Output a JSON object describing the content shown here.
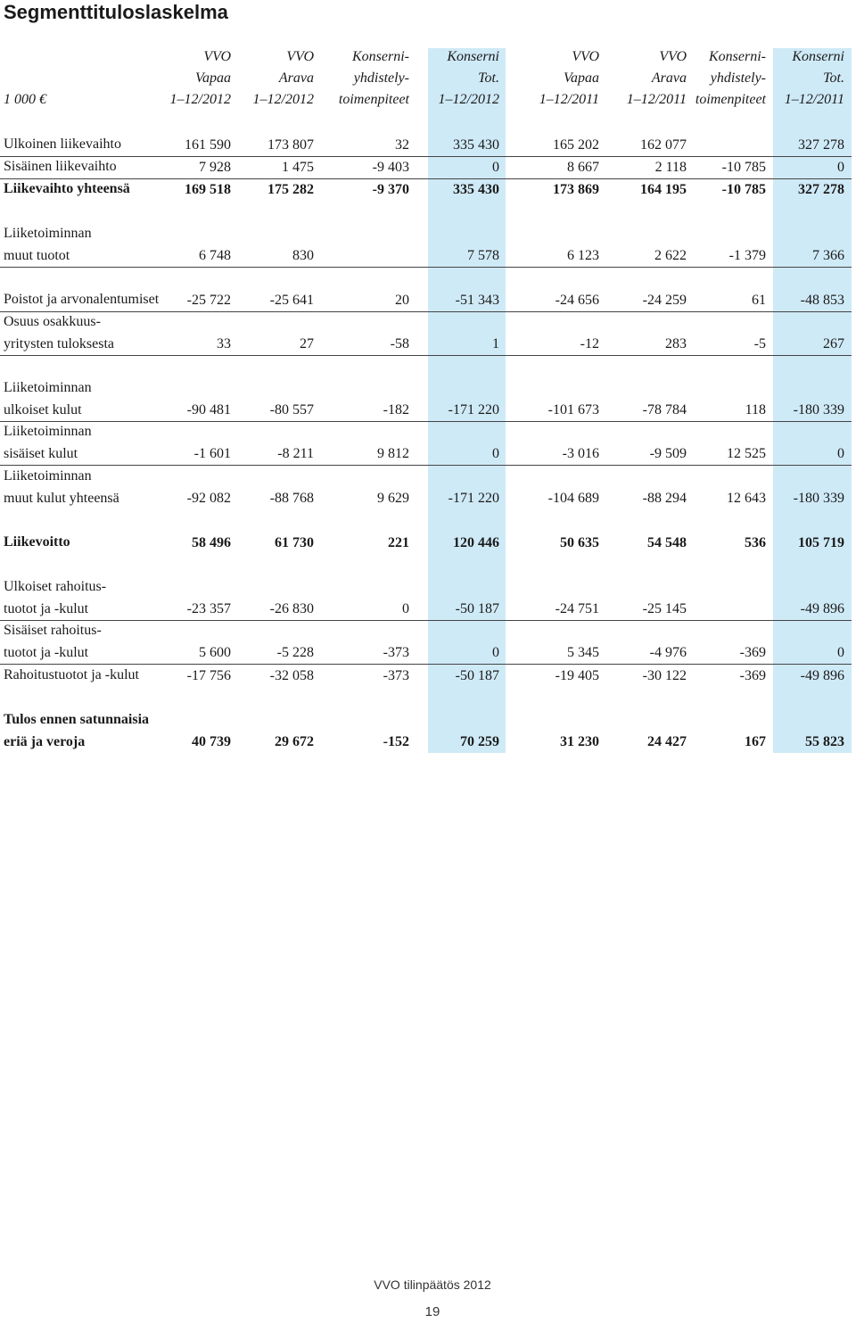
{
  "title": "Segmenttituloslaskelma",
  "unit_label": "1 000 €",
  "columns": [
    {
      "lines": [
        "VVO",
        "Vapaa",
        "1–12/2012"
      ]
    },
    {
      "lines": [
        "VVO",
        "Arava",
        "1–12/2012"
      ]
    },
    {
      "lines": [
        "Konserni-",
        "yhdistely-",
        "toimenpiteet"
      ]
    },
    {
      "lines": [
        "Konserni",
        "Tot.",
        "1–12/2012"
      ]
    },
    {
      "lines": [
        "VVO",
        "Vapaa",
        "1–12/2011"
      ]
    },
    {
      "lines": [
        "VVO",
        "Arava",
        "1–12/2011"
      ]
    },
    {
      "lines": [
        "Konserni-",
        "yhdistely-",
        "toimenpiteet"
      ]
    },
    {
      "lines": [
        "Konserni",
        "Tot.",
        "1–12/2011"
      ]
    }
  ],
  "rows": [
    {
      "label": [
        "Ulkoinen liikevaihto"
      ],
      "values": [
        "161 590",
        "173 807",
        "32",
        "335 430",
        "165 202",
        "162 077",
        "",
        "327 278"
      ]
    },
    {
      "label": [
        "Sisäinen liikevaihto"
      ],
      "values": [
        "7 928",
        "1 475",
        "-9 403",
        "0",
        "8 667",
        "2 118",
        "-10 785",
        "0"
      ]
    },
    {
      "label": [
        "Liikevaihto yhteensä"
      ],
      "values": [
        "169 518",
        "175 282",
        "-9 370",
        "335 430",
        "173 869",
        "164 195",
        "-10 785",
        "327 278"
      ]
    },
    {
      "label": [
        "Liiketoiminnan",
        "muut tuotot"
      ],
      "values": [
        "6 748",
        "830",
        "",
        "7 578",
        "6 123",
        "2 622",
        "-1 379",
        "7 366"
      ]
    },
    {
      "label": [
        "Poistot ja arvonalentumiset"
      ],
      "values": [
        "-25 722",
        "-25 641",
        "20",
        "-51 343",
        "-24 656",
        "-24 259",
        "61",
        "-48 853"
      ]
    },
    {
      "label": [
        "Osuus osakkuus-",
        "yritysten tuloksesta"
      ],
      "values": [
        "33",
        "27",
        "-58",
        "1",
        "-12",
        "283",
        "-5",
        "267"
      ]
    },
    {
      "label": [
        "Liiketoiminnan",
        "ulkoiset kulut"
      ],
      "values": [
        "-90 481",
        "-80 557",
        "-182",
        "-171 220",
        "-101 673",
        "-78 784",
        "118",
        "-180 339"
      ]
    },
    {
      "label": [
        "Liiketoiminnan",
        "sisäiset kulut"
      ],
      "values": [
        "-1 601",
        "-8 211",
        "9 812",
        "0",
        "-3 016",
        "-9 509",
        "12 525",
        "0"
      ]
    },
    {
      "label": [
        "Liiketoiminnan",
        "muut kulut yhteensä"
      ],
      "values": [
        "-92 082",
        "-88 768",
        "9 629",
        "-171 220",
        "-104 689",
        "-88 294",
        "12 643",
        "-180 339"
      ]
    },
    {
      "label": [
        "Liikevoitto"
      ],
      "values": [
        "58 496",
        "61 730",
        "221",
        "120 446",
        "50 635",
        "54 548",
        "536",
        "105 719"
      ]
    },
    {
      "label": [
        "Ulkoiset rahoitus-",
        "tuotot ja -kulut"
      ],
      "values": [
        "-23 357",
        "-26 830",
        "0",
        "-50 187",
        "-24 751",
        "-25 145",
        "",
        "-49 896"
      ]
    },
    {
      "label": [
        "Sisäiset rahoitus-",
        "tuotot ja -kulut"
      ],
      "values": [
        "5 600",
        "-5 228",
        "-373",
        "0",
        "5 345",
        "-4 976",
        "-369",
        "0"
      ]
    },
    {
      "label": [
        "Rahoitustuotot ja -kulut"
      ],
      "values": [
        "-17 756",
        "-32 058",
        "-373",
        "-50 187",
        "-19 405",
        "-30 122",
        "-369",
        "-49 896"
      ]
    },
    {
      "label": [
        "Tulos ennen satunnaisia",
        "eriä ja veroja"
      ],
      "values": [
        "40 739",
        "29 672",
        "-152",
        "70 259",
        "31 230",
        "24 427",
        "167",
        "55 823"
      ]
    }
  ],
  "footer": {
    "text": "VVO tilinpäätös 2012",
    "page_number": "19"
  }
}
